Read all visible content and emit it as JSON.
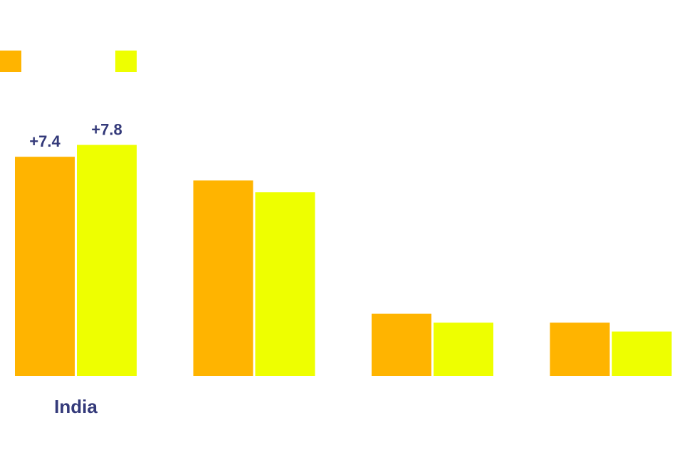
{
  "chart_data": {
    "type": "bar",
    "categories": [
      "India",
      "",
      "",
      ""
    ],
    "series": [
      {
        "color": "#FFB400",
        "values": [
          7.4,
          6.6,
          2.1,
          1.8
        ]
      },
      {
        "color": "#EEFF00",
        "values": [
          7.8,
          6.2,
          1.8,
          1.5
        ]
      }
    ],
    "data_labels": [
      [
        "+7.4",
        "",
        "",
        ""
      ],
      [
        "+7.8",
        "",
        "",
        ""
      ]
    ],
    "ylim": [
      0,
      10
    ],
    "grid": false,
    "legend": "top-left",
    "title": "",
    "xlabel": "",
    "ylabel": ""
  }
}
